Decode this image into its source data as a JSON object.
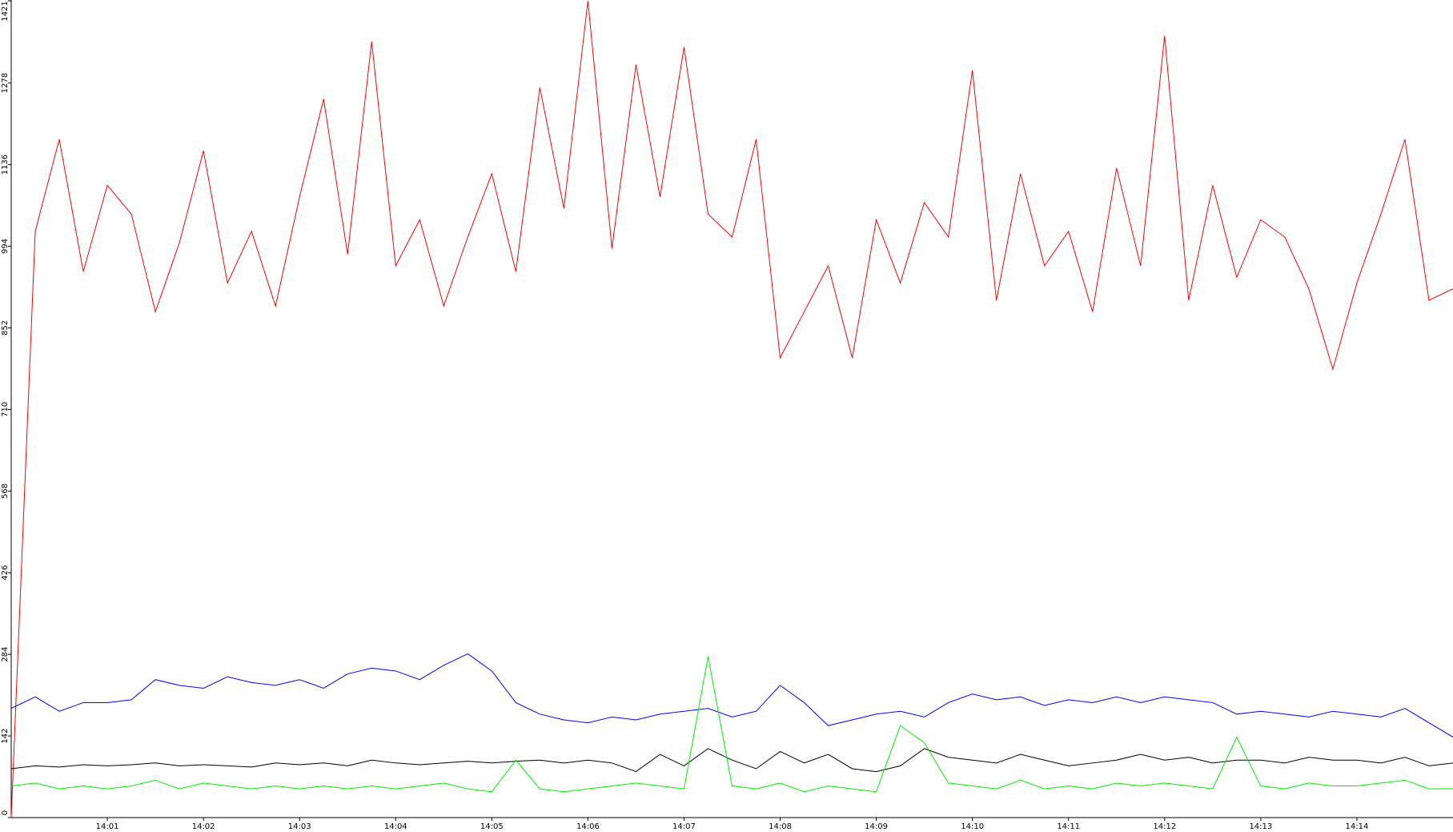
{
  "chart_data": {
    "type": "line",
    "x": [
      0,
      0.25,
      0.5,
      0.75,
      1,
      1.25,
      1.5,
      1.75,
      2,
      2.25,
      2.5,
      2.75,
      3,
      3.25,
      3.5,
      3.75,
      4,
      4.25,
      4.5,
      4.75,
      5,
      5.25,
      5.5,
      5.75,
      6,
      6.25,
      6.5,
      6.75,
      7,
      7.25,
      7.5,
      7.75,
      8,
      8.25,
      8.5,
      8.75,
      9,
      9.25,
      9.5,
      9.75,
      10,
      10.25,
      10.5,
      10.75,
      11,
      11.25,
      11.5,
      11.75,
      12,
      12.25,
      12.5,
      12.75,
      13,
      13.25,
      13.5,
      13.75,
      14,
      14.25,
      14.5,
      14.75,
      15
    ],
    "series": [
      {
        "color": "#ff0000",
        "values": [
          0,
          1020,
          1180,
          950,
          1100,
          1050,
          880,
          1000,
          1160,
          930,
          1020,
          890,
          1080,
          1250,
          980,
          1350,
          960,
          1040,
          890,
          1010,
          1120,
          950,
          1270,
          1060,
          1421,
          990,
          1310,
          1080,
          1340,
          1050,
          1010,
          1180,
          800,
          880,
          960,
          800,
          1040,
          930,
          1070,
          1010,
          1300,
          900,
          1120,
          960,
          1020,
          880,
          1130,
          960,
          1360,
          900,
          1100,
          940,
          1040,
          1010,
          920,
          780,
          930,
          1050,
          1180,
          900,
          920
        ]
      },
      {
        "color": "#0000ff",
        "values": [
          190,
          210,
          185,
          200,
          200,
          205,
          240,
          230,
          225,
          245,
          235,
          230,
          240,
          225,
          250,
          260,
          255,
          240,
          265,
          285,
          255,
          200,
          180,
          170,
          165,
          175,
          170,
          180,
          185,
          190,
          175,
          185,
          230,
          200,
          160,
          170,
          180,
          185,
          175,
          200,
          215,
          205,
          210,
          195,
          205,
          200,
          210,
          200,
          210,
          205,
          200,
          180,
          185,
          180,
          175,
          185,
          180,
          175,
          190,
          165,
          140
        ]
      },
      {
        "color": "#000000",
        "values": [
          85,
          90,
          88,
          92,
          90,
          92,
          95,
          90,
          92,
          90,
          88,
          95,
          92,
          95,
          90,
          100,
          95,
          92,
          95,
          98,
          95,
          98,
          100,
          95,
          100,
          95,
          80,
          110,
          90,
          120,
          100,
          85,
          115,
          95,
          110,
          85,
          80,
          90,
          120,
          105,
          100,
          95,
          110,
          100,
          90,
          95,
          100,
          110,
          100,
          105,
          95,
          100,
          100,
          95,
          105,
          100,
          100,
          95,
          105,
          90,
          95
        ]
      },
      {
        "color": "#00ee00",
        "values": [
          55,
          60,
          50,
          55,
          50,
          55,
          65,
          50,
          60,
          55,
          50,
          55,
          50,
          55,
          50,
          55,
          50,
          55,
          60,
          50,
          45,
          100,
          50,
          45,
          50,
          55,
          60,
          55,
          50,
          280,
          55,
          50,
          60,
          45,
          55,
          50,
          45,
          160,
          130,
          60,
          55,
          50,
          65,
          50,
          55,
          50,
          60,
          55,
          60,
          55,
          50,
          140,
          55,
          50,
          60,
          55,
          55,
          60,
          65,
          50,
          50
        ]
      }
    ],
    "xlim": [
      0,
      15
    ],
    "xticks": [
      {
        "value": 1,
        "label": "14:01"
      },
      {
        "value": 2,
        "label": "14:02"
      },
      {
        "value": 3,
        "label": "14:03"
      },
      {
        "value": 4,
        "label": "14:04"
      },
      {
        "value": 5,
        "label": "14:05"
      },
      {
        "value": 6,
        "label": "14:06"
      },
      {
        "value": 7,
        "label": "14:07"
      },
      {
        "value": 8,
        "label": "14:08"
      },
      {
        "value": 9,
        "label": "14:09"
      },
      {
        "value": 10,
        "label": "14:10"
      },
      {
        "value": 11,
        "label": "14:11"
      },
      {
        "value": 12,
        "label": "14:12"
      },
      {
        "value": 13,
        "label": "14:13"
      },
      {
        "value": 14,
        "label": "14:14"
      }
    ],
    "ylim": [
      0,
      1421
    ],
    "yticks": [
      0,
      142,
      284,
      426,
      568,
      710,
      852,
      994,
      1136,
      1278,
      1421
    ]
  }
}
